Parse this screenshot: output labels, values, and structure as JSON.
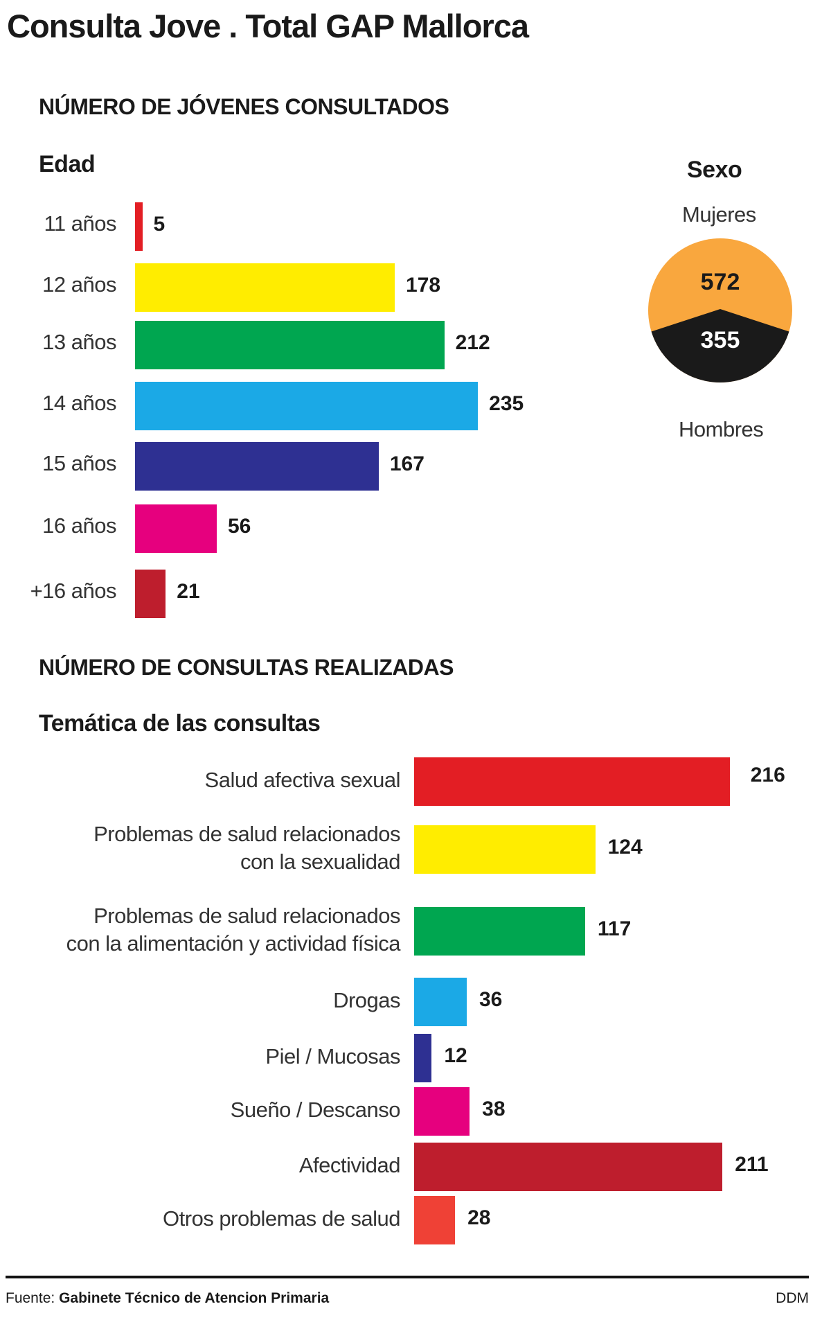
{
  "title": "Consulta Jove . Total GAP Mallorca",
  "chart_data": [
    {
      "type": "bar",
      "orientation": "horizontal",
      "title": "NÚMERO DE JÓVENES CONSULTADOS",
      "subtitle": "Edad",
      "categories": [
        "11 años",
        "12 años",
        "13 años",
        "14 años",
        "15 años",
        "16 años",
        "+16 años"
      ],
      "values": [
        5,
        178,
        212,
        235,
        167,
        56,
        21
      ],
      "colors": [
        "#e31e24",
        "#ffed00",
        "#00a650",
        "#1ba9e6",
        "#2e3092",
        "#e6007e",
        "#be1e2d"
      ],
      "grid": false
    },
    {
      "type": "pie",
      "title": "Sexo",
      "categories": [
        "Mujeres",
        "Hombres"
      ],
      "values": [
        572,
        355
      ],
      "colors": [
        "#f9a73e",
        "#1a1a1a"
      ]
    },
    {
      "type": "bar",
      "orientation": "horizontal",
      "title": "NÚMERO DE CONSULTAS REALIZADAS",
      "subtitle": "Temática de las consultas",
      "categories": [
        "Salud afectiva sexual",
        "Problemas de salud relacionados\ncon la sexualidad",
        "Problemas de salud relacionados\ncon la alimentación y actividad física",
        "Drogas",
        "Piel / Mucosas",
        "Sueño / Descanso",
        "Afectividad",
        "Otros problemas de salud"
      ],
      "values": [
        216,
        124,
        117,
        36,
        12,
        38,
        211,
        28
      ],
      "colors": [
        "#e31e24",
        "#ffed00",
        "#00a650",
        "#1ba9e6",
        "#2e3092",
        "#e6007e",
        "#be1e2d",
        "#ef4136"
      ],
      "grid": false
    }
  ],
  "footer": {
    "source_label": "Fuente:",
    "source": "Gabinete Técnico de Atencion Primaria",
    "credit": "DDM"
  }
}
